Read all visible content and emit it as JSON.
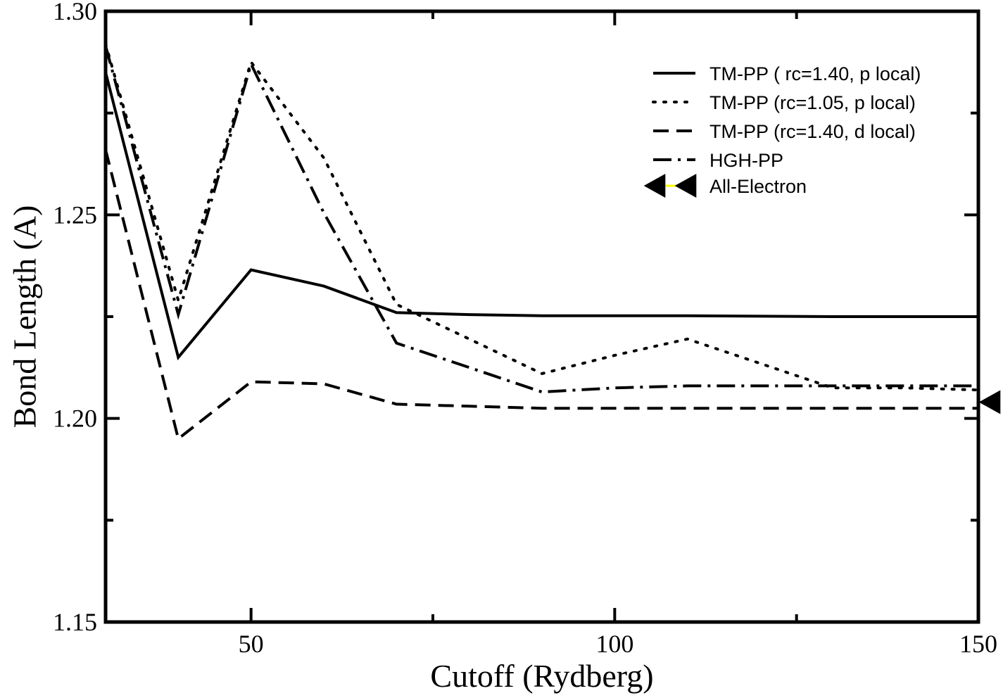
{
  "chart_data": {
    "type": "line",
    "title": "",
    "xlabel": "Cutoff (Rydberg)",
    "ylabel": "Bond Length (A)",
    "xlim": [
      30,
      150
    ],
    "ylim": [
      1.15,
      1.3
    ],
    "x_ticks": [
      {
        "value": 50,
        "label": "50"
      },
      {
        "value": 100,
        "label": "100"
      },
      {
        "value": 150,
        "label": "150"
      }
    ],
    "x_minor_ticks": [
      75,
      125
    ],
    "y_ticks": [
      {
        "value": 1.15,
        "label": "1.15"
      },
      {
        "value": 1.2,
        "label": "1.20"
      },
      {
        "value": 1.25,
        "label": "1.25"
      },
      {
        "value": 1.3,
        "label": "1.30"
      }
    ],
    "y_minor_ticks": [
      1.175,
      1.225,
      1.275
    ],
    "grid": false,
    "legend_position": "top-right",
    "series": [
      {
        "name": "TM-PP ( rc=1.40, p local)",
        "style": "solid",
        "color": "#000000",
        "x": [
          30,
          40,
          50,
          60,
          70,
          80,
          90,
          100,
          110,
          120,
          130,
          140,
          150
        ],
        "y": [
          1.285,
          1.215,
          1.2365,
          1.2325,
          1.226,
          1.2255,
          1.2252,
          1.2252,
          1.2252,
          1.2251,
          1.225,
          1.225,
          1.225
        ]
      },
      {
        "name": "TM-PP (rc=1.05, p local)",
        "style": "dotted",
        "color": "#000000",
        "x": [
          30,
          40,
          50,
          60,
          70,
          80,
          90,
          100,
          110,
          120,
          130,
          140,
          150
        ],
        "y": [
          1.292,
          1.229,
          1.2875,
          1.264,
          1.228,
          1.2195,
          1.211,
          1.2155,
          1.2195,
          1.2135,
          1.2075,
          1.2075,
          1.207
        ]
      },
      {
        "name": "TM-PP (rc=1.40, d local)",
        "style": "dashed",
        "color": "#000000",
        "x": [
          30,
          40,
          50,
          60,
          70,
          80,
          90,
          100,
          110,
          120,
          130,
          140,
          150
        ],
        "y": [
          1.266,
          1.195,
          1.209,
          1.2085,
          1.2035,
          1.203,
          1.2025,
          1.2025,
          1.2025,
          1.2025,
          1.2025,
          1.2025,
          1.2025
        ]
      },
      {
        "name": "HGH-PP",
        "style": "dashdot",
        "color": "#000000",
        "x": [
          30,
          40,
          50,
          60,
          70,
          80,
          90,
          100,
          110,
          120,
          130,
          140,
          150
        ],
        "y": [
          1.2915,
          1.2255,
          1.287,
          1.2505,
          1.2185,
          1.2125,
          1.2065,
          1.2075,
          1.208,
          1.208,
          1.208,
          1.208,
          1.208
        ]
      }
    ],
    "markers": [
      {
        "name": "All-Electron",
        "shape": "left-triangle",
        "color": "#000000",
        "line_color": "#ffff00",
        "x": [
          150
        ],
        "y": [
          1.204
        ]
      }
    ]
  }
}
